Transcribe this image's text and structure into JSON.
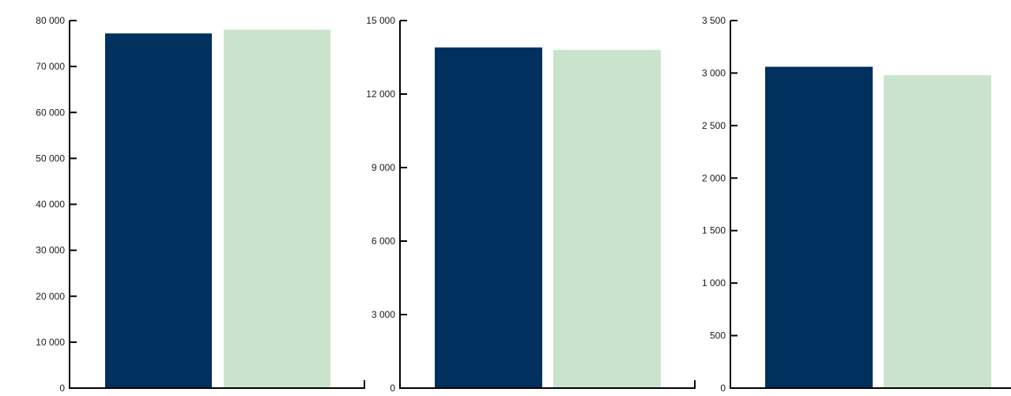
{
  "colors": {
    "series_a": "#00305e",
    "series_b": "#c9e3cd",
    "axis": "#000000"
  },
  "chart_data": [
    {
      "type": "bar",
      "categories": [
        "",
        ""
      ],
      "values": [
        77200,
        78000
      ],
      "ylim": [
        0,
        80000
      ],
      "yticks": [
        {
          "value": 0,
          "label": "0"
        },
        {
          "value": 10000,
          "label": "10 000"
        },
        {
          "value": 20000,
          "label": "20 000"
        },
        {
          "value": 30000,
          "label": "30 000"
        },
        {
          "value": 40000,
          "label": "40 000"
        },
        {
          "value": 50000,
          "label": "50 000"
        },
        {
          "value": 60000,
          "label": "60 000"
        },
        {
          "value": 70000,
          "label": "70 000"
        },
        {
          "value": 80000,
          "label": "80 000"
        }
      ],
      "grid": false
    },
    {
      "type": "bar",
      "categories": [
        "",
        ""
      ],
      "values": [
        13900,
        13800
      ],
      "ylim": [
        0,
        15000
      ],
      "yticks": [
        {
          "value": 0,
          "label": "0"
        },
        {
          "value": 3000,
          "label": "3 000"
        },
        {
          "value": 6000,
          "label": "6 000"
        },
        {
          "value": 9000,
          "label": "9 000"
        },
        {
          "value": 12000,
          "label": "12 000"
        },
        {
          "value": 15000,
          "label": "15 000"
        }
      ],
      "grid": false
    },
    {
      "type": "bar",
      "categories": [
        "",
        ""
      ],
      "values": [
        3060,
        2980
      ],
      "ylim": [
        0,
        3500
      ],
      "yticks": [
        {
          "value": 0,
          "label": "0"
        },
        {
          "value": 500,
          "label": "500"
        },
        {
          "value": 1000,
          "label": "1 000"
        },
        {
          "value": 1500,
          "label": "1 500"
        },
        {
          "value": 2000,
          "label": "2 000"
        },
        {
          "value": 2500,
          "label": "2 500"
        },
        {
          "value": 3000,
          "label": "3 000"
        },
        {
          "value": 3500,
          "label": "3 500"
        }
      ],
      "grid": false
    }
  ]
}
